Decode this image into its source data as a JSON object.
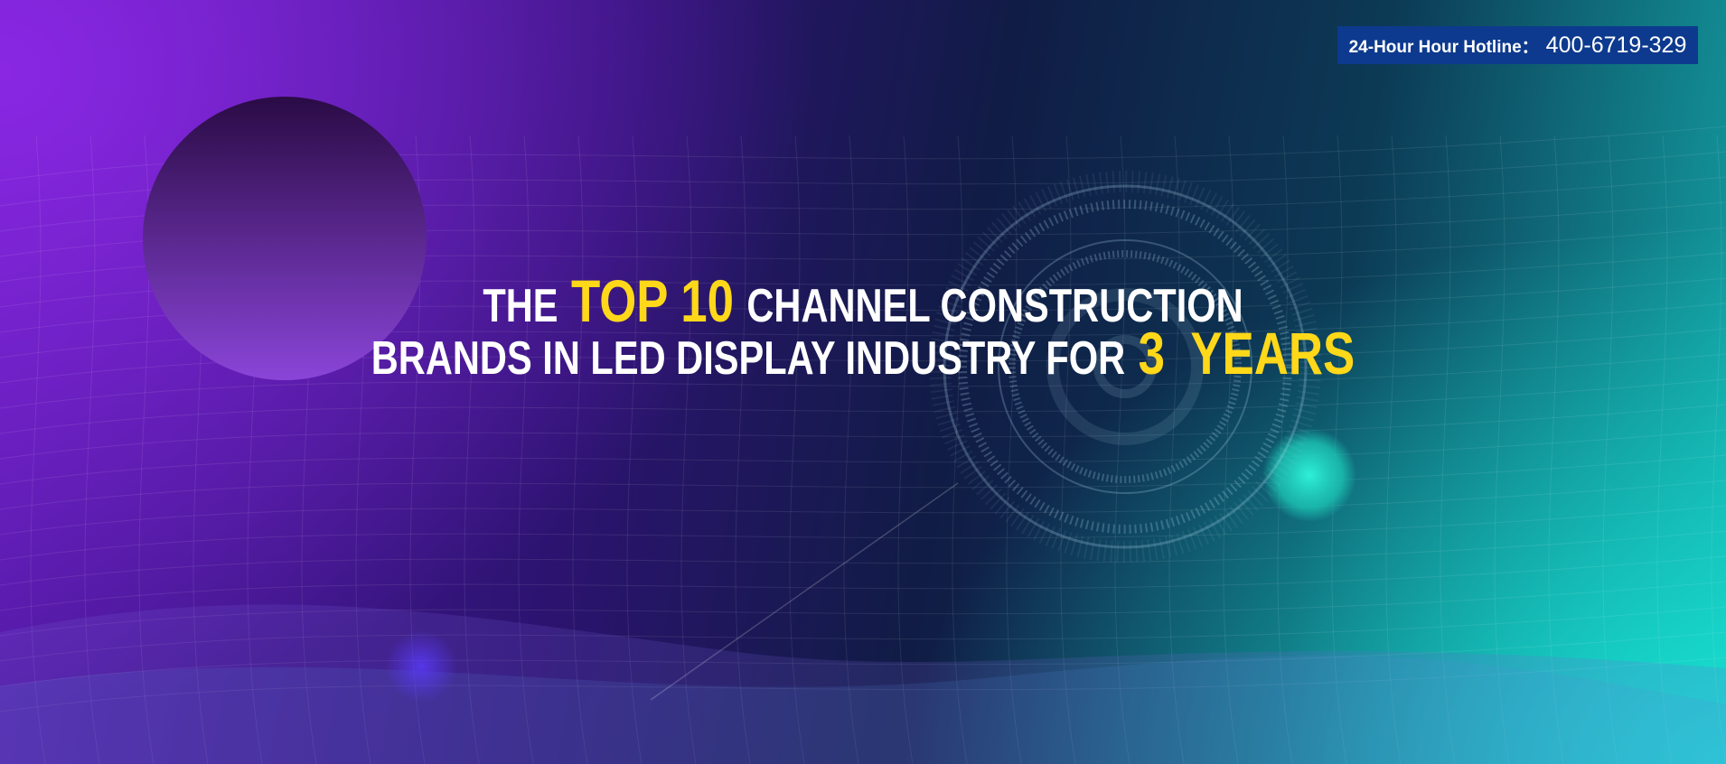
{
  "hotline": {
    "label": "24-Hour Hour Hotline：",
    "number": "400-6719-329"
  },
  "headline": {
    "line1": [
      "THE",
      "TOP 10",
      "CHANNEL CONSTRUCTION"
    ],
    "line2": [
      "BRANDS IN LED DISPLAY INDUSTRY FOR",
      "3  YEARS"
    ]
  }
}
